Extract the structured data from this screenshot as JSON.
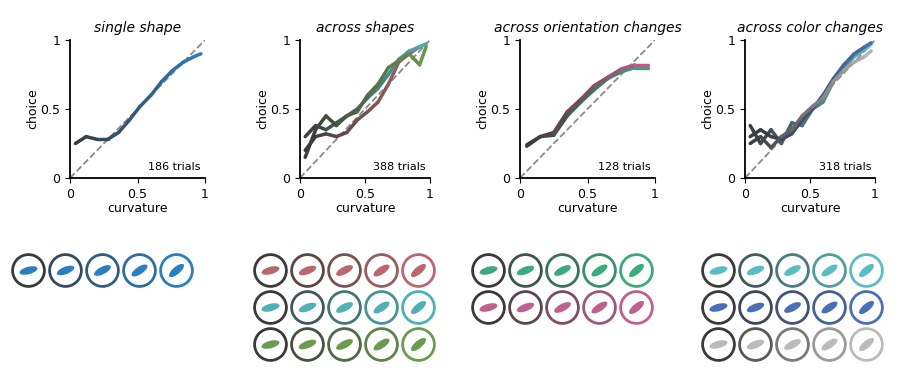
{
  "chart_data": [
    {
      "type": "line",
      "title": "single shape",
      "x_label": "curvature",
      "y_label": "choice",
      "xlim": [
        0,
        1
      ],
      "ylim": [
        0,
        1
      ],
      "xticks": [
        0,
        0.5,
        1
      ],
      "yticks": [
        0,
        0.5,
        1
      ],
      "annotation": "186 trials",
      "series": [
        {
          "x": [
            0,
            1
          ],
          "values": [
            0,
            1
          ],
          "color": "#8a8a8a",
          "line_style": "dashed"
        },
        {
          "color": "#2a7fc1",
          "x": [
            0.04,
            0.12,
            0.2,
            0.28,
            0.36,
            0.44,
            0.52,
            0.6,
            0.68,
            0.76,
            0.84,
            0.92,
            0.97
          ],
          "values": [
            0.25,
            0.3,
            0.28,
            0.28,
            0.33,
            0.42,
            0.52,
            0.6,
            0.7,
            0.78,
            0.84,
            0.88,
            0.9
          ]
        }
      ]
    },
    {
      "type": "line",
      "title": "across shapes",
      "x_label": "curvature",
      "y_label": "choice",
      "xlim": [
        0,
        1
      ],
      "ylim": [
        0,
        1
      ],
      "xticks": [
        0,
        0.5,
        1
      ],
      "yticks": [
        0,
        0.5,
        1
      ],
      "annotation": "388 trials",
      "series": [
        {
          "x": [
            0,
            1
          ],
          "values": [
            0,
            1
          ],
          "color": "#8a8a8a",
          "line_style": "dashed"
        },
        {
          "color": "#b9676c",
          "x": [
            0.04,
            0.12,
            0.2,
            0.28,
            0.36,
            0.44,
            0.52,
            0.6,
            0.68,
            0.76,
            0.84,
            0.92,
            0.97
          ],
          "values": [
            0.2,
            0.3,
            0.32,
            0.3,
            0.33,
            0.42,
            0.48,
            0.55,
            0.68,
            0.84,
            0.9,
            0.95,
            0.97
          ]
        },
        {
          "color": "#4fb0b5",
          "x": [
            0.04,
            0.12,
            0.2,
            0.28,
            0.36,
            0.44,
            0.52,
            0.6,
            0.68,
            0.76,
            0.84,
            0.92,
            0.97
          ],
          "values": [
            0.3,
            0.38,
            0.35,
            0.4,
            0.45,
            0.5,
            0.58,
            0.65,
            0.75,
            0.86,
            0.92,
            0.95,
            0.97
          ]
        },
        {
          "color": "#6a9b4e",
          "x": [
            0.04,
            0.12,
            0.2,
            0.28,
            0.36,
            0.44,
            0.52,
            0.6,
            0.68,
            0.76,
            0.84,
            0.92,
            0.97
          ],
          "values": [
            0.15,
            0.35,
            0.45,
            0.38,
            0.45,
            0.48,
            0.6,
            0.68,
            0.8,
            0.85,
            0.9,
            0.82,
            0.95
          ]
        }
      ]
    },
    {
      "type": "line",
      "title": "across orientation changes",
      "x_label": "curvature",
      "y_label": "choice",
      "xlim": [
        0,
        1
      ],
      "ylim": [
        0,
        1
      ],
      "xticks": [
        0,
        0.5,
        1
      ],
      "yticks": [
        0,
        0.5,
        1
      ],
      "annotation": "128 trials",
      "series": [
        {
          "x": [
            0,
            1
          ],
          "values": [
            0,
            1
          ],
          "color": "#8a8a8a",
          "line_style": "dashed"
        },
        {
          "color": "#3daa7d",
          "x": [
            0.05,
            0.15,
            0.25,
            0.35,
            0.45,
            0.55,
            0.65,
            0.75,
            0.85,
            0.95
          ],
          "values": [
            0.23,
            0.3,
            0.31,
            0.45,
            0.55,
            0.64,
            0.72,
            0.77,
            0.8,
            0.8
          ]
        },
        {
          "color": "#c06090",
          "x": [
            0.05,
            0.15,
            0.25,
            0.35,
            0.45,
            0.55,
            0.65,
            0.75,
            0.85,
            0.95
          ],
          "values": [
            0.24,
            0.3,
            0.33,
            0.48,
            0.57,
            0.67,
            0.73,
            0.79,
            0.82,
            0.82
          ]
        }
      ]
    },
    {
      "type": "line",
      "title": "across color changes",
      "x_label": "curvature",
      "y_label": "choice",
      "xlim": [
        0,
        1
      ],
      "ylim": [
        0,
        1
      ],
      "xticks": [
        0,
        0.5,
        1
      ],
      "yticks": [
        0,
        0.5,
        1
      ],
      "annotation": "318 trials",
      "series": [
        {
          "x": [
            0,
            1
          ],
          "values": [
            0,
            1
          ],
          "color": "#8a8a8a",
          "line_style": "dashed"
        },
        {
          "color": "#5bbcc4",
          "x": [
            0.04,
            0.12,
            0.2,
            0.28,
            0.36,
            0.44,
            0.52,
            0.6,
            0.68,
            0.76,
            0.84,
            0.92,
            0.97
          ],
          "values": [
            0.38,
            0.25,
            0.35,
            0.25,
            0.4,
            0.38,
            0.5,
            0.55,
            0.7,
            0.8,
            0.88,
            0.93,
            0.97
          ]
        },
        {
          "color": "#4a6fb5",
          "x": [
            0.04,
            0.12,
            0.2,
            0.28,
            0.36,
            0.44,
            0.52,
            0.6,
            0.68,
            0.76,
            0.84,
            0.92,
            0.97
          ],
          "values": [
            0.3,
            0.35,
            0.3,
            0.28,
            0.32,
            0.42,
            0.5,
            0.6,
            0.72,
            0.82,
            0.9,
            0.95,
            0.98
          ]
        },
        {
          "color": "#bbbbbb",
          "x": [
            0.04,
            0.12,
            0.2,
            0.28,
            0.36,
            0.44,
            0.52,
            0.6,
            0.68,
            0.76,
            0.84,
            0.92,
            0.97
          ],
          "values": [
            0.25,
            0.3,
            0.22,
            0.3,
            0.35,
            0.45,
            0.52,
            0.58,
            0.7,
            0.78,
            0.84,
            0.88,
            0.92
          ]
        }
      ]
    }
  ]
}
